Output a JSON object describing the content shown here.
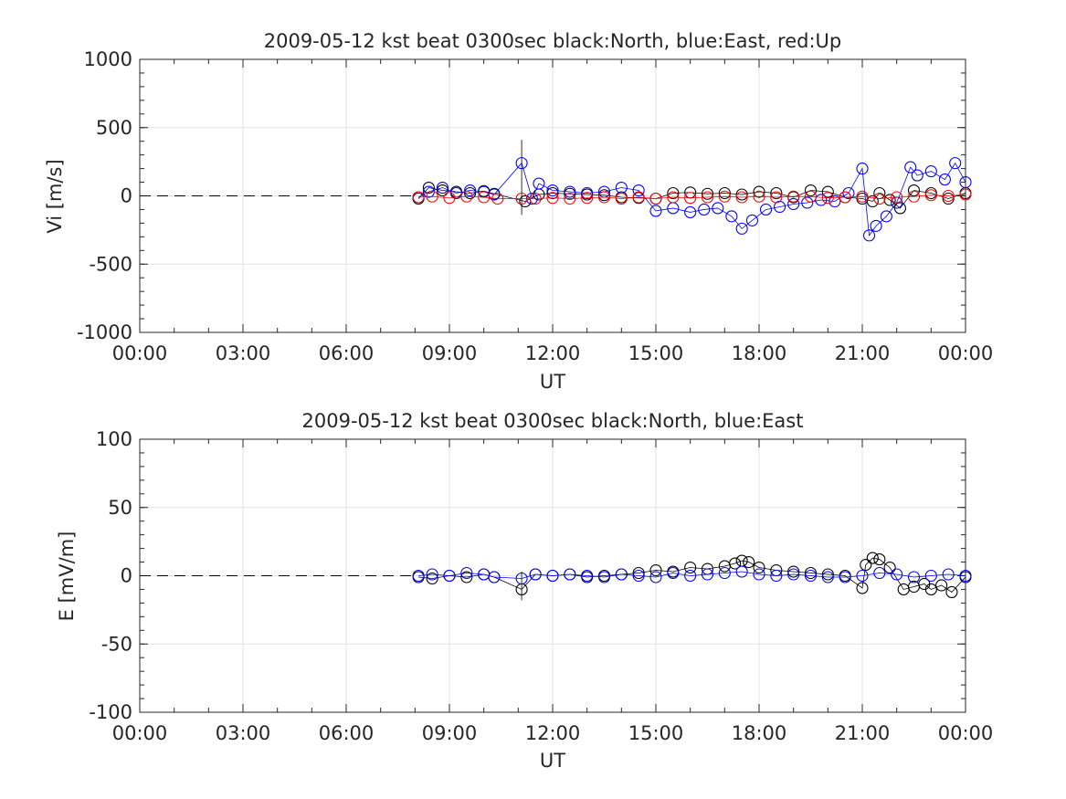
{
  "chart_data": [
    {
      "type": "scatter",
      "title": "2009-05-12 kst beat 0300sec black:North, blue:East, red:Up",
      "xlabel": "UT",
      "ylabel": "Vi [m/s]",
      "xlim_hours": [
        0,
        24
      ],
      "ylim": [
        -1000,
        1000
      ],
      "x_ticks": [
        "00:00",
        "03:00",
        "06:00",
        "09:00",
        "12:00",
        "15:00",
        "18:00",
        "21:00",
        "00:00"
      ],
      "y_ticks": [
        "1000",
        "500",
        "0",
        "-500",
        "-1000"
      ],
      "grid": true,
      "dashed_zero_line": {
        "from_hour": 0,
        "to_hour": 8,
        "value": 0
      },
      "series": [
        {
          "name": "North",
          "color": "#000000",
          "marker": "circle",
          "x_hours": [
            8.1,
            8.4,
            8.8,
            9.2,
            9.6,
            10.0,
            10.3,
            11.2,
            11.6,
            12.0,
            12.5,
            13.0,
            13.5,
            14.0,
            14.5,
            15.0,
            15.5,
            16.0,
            16.5,
            17.0,
            17.5,
            18.0,
            18.5,
            19.0,
            19.5,
            20.0,
            20.5,
            21.0,
            21.3,
            21.5,
            21.8,
            22.1,
            22.5,
            23.0,
            23.5,
            24.0
          ],
          "values": [
            -20,
            60,
            40,
            30,
            20,
            35,
            15,
            -40,
            10,
            20,
            15,
            10,
            5,
            -10,
            -15,
            -20,
            20,
            25,
            15,
            20,
            10,
            30,
            20,
            -10,
            40,
            30,
            -10,
            -20,
            -40,
            20,
            -30,
            -90,
            40,
            20,
            -20,
            20
          ]
        },
        {
          "name": "East",
          "color": "#0000ff",
          "marker": "circle",
          "x_hours": [
            8.1,
            8.4,
            8.8,
            9.2,
            9.6,
            10.0,
            10.3,
            11.1,
            11.4,
            11.6,
            12.0,
            12.5,
            13.0,
            13.5,
            14.0,
            14.5,
            15.0,
            15.5,
            16.0,
            16.4,
            16.8,
            17.2,
            17.5,
            17.8,
            18.2,
            18.6,
            19.0,
            19.4,
            19.8,
            20.2,
            20.6,
            21.0,
            21.2,
            21.4,
            21.7,
            22.0,
            22.4,
            22.6,
            23.0,
            23.4,
            23.7,
            24.0
          ],
          "values": [
            -10,
            30,
            60,
            20,
            40,
            30,
            10,
            240,
            -20,
            90,
            40,
            30,
            20,
            30,
            60,
            40,
            -110,
            -90,
            -120,
            -100,
            -90,
            -150,
            -240,
            -180,
            -100,
            -80,
            -60,
            -50,
            -30,
            -40,
            20,
            200,
            -290,
            -220,
            -150,
            -50,
            210,
            150,
            180,
            120,
            240,
            100
          ]
        },
        {
          "name": "Up",
          "color": "#ff0000",
          "marker": "circle",
          "x_hours": [
            8.1,
            8.5,
            9.0,
            9.5,
            10.0,
            10.4,
            11.1,
            11.5,
            12.0,
            12.5,
            13.0,
            13.5,
            14.0,
            14.5,
            15.0,
            15.5,
            16.0,
            16.5,
            17.0,
            17.5,
            18.0,
            18.5,
            19.0,
            19.5,
            20.0,
            20.5,
            21.0,
            21.5,
            22.0,
            22.5,
            23.0,
            23.5,
            24.0
          ],
          "values": [
            -10,
            -5,
            -15,
            -5,
            -10,
            -20,
            -20,
            -20,
            -15,
            -20,
            -15,
            -10,
            -20,
            -10,
            -20,
            -10,
            -15,
            -10,
            -5,
            -10,
            -5,
            -10,
            -5,
            -5,
            -15,
            -10,
            -5,
            -20,
            -10,
            -5,
            5,
            0,
            10
          ]
        }
      ],
      "error_bar": {
        "x_hour": 11.1,
        "low": -140,
        "high": 410
      }
    },
    {
      "type": "scatter",
      "title": "2009-05-12 kst beat 0300sec black:North, blue:East",
      "xlabel": "UT",
      "ylabel": "E [mV/m]",
      "xlim_hours": [
        0,
        24
      ],
      "ylim": [
        -100,
        100
      ],
      "x_ticks": [
        "00:00",
        "03:00",
        "06:00",
        "09:00",
        "12:00",
        "15:00",
        "18:00",
        "21:00",
        "00:00"
      ],
      "y_ticks": [
        "100",
        "50",
        "0",
        "-50",
        "-100"
      ],
      "grid": true,
      "dashed_zero_line": {
        "from_hour": 0,
        "to_hour": 8,
        "value": 0
      },
      "series": [
        {
          "name": "North",
          "color": "#000000",
          "marker": "circle",
          "x_hours": [
            8.1,
            8.5,
            9.0,
            9.5,
            10.0,
            10.3,
            11.1,
            11.5,
            12.0,
            12.5,
            13.0,
            13.5,
            14.0,
            14.5,
            15.0,
            15.5,
            16.0,
            16.5,
            17.0,
            17.3,
            17.5,
            17.7,
            18.0,
            18.5,
            19.0,
            19.5,
            20.0,
            20.5,
            21.0,
            21.1,
            21.3,
            21.5,
            21.8,
            22.2,
            22.5,
            22.8,
            23.0,
            23.3,
            23.6,
            24.0
          ],
          "values": [
            -1,
            -2,
            0,
            -1,
            1,
            -1,
            -10,
            1,
            0,
            1,
            -1,
            0,
            1,
            2,
            4,
            3,
            6,
            5,
            7,
            9,
            11,
            10,
            6,
            4,
            3,
            2,
            1,
            0,
            -9,
            8,
            13,
            12,
            6,
            -10,
            -8,
            -6,
            -10,
            -7,
            -12,
            -1
          ]
        },
        {
          "name": "East",
          "color": "#0000ff",
          "marker": "circle",
          "x_hours": [
            8.1,
            8.5,
            9.0,
            9.5,
            10.0,
            10.3,
            11.1,
            11.5,
            12.0,
            12.5,
            13.0,
            13.5,
            14.0,
            14.5,
            15.0,
            15.5,
            16.0,
            16.5,
            17.0,
            17.5,
            18.0,
            18.5,
            19.0,
            19.5,
            20.0,
            20.5,
            21.0,
            21.5,
            22.0,
            22.5,
            23.0,
            23.5,
            24.0
          ],
          "values": [
            0,
            1,
            0,
            2,
            1,
            -1,
            -2,
            1,
            0,
            1,
            0,
            -1,
            1,
            0,
            -1,
            2,
            0,
            1,
            2,
            3,
            1,
            0,
            1,
            0,
            -1,
            -1,
            0,
            2,
            1,
            -1,
            0,
            1,
            0
          ]
        }
      ],
      "error_bar": {
        "x_hour": 11.1,
        "low": -18,
        "high": 3
      }
    }
  ]
}
